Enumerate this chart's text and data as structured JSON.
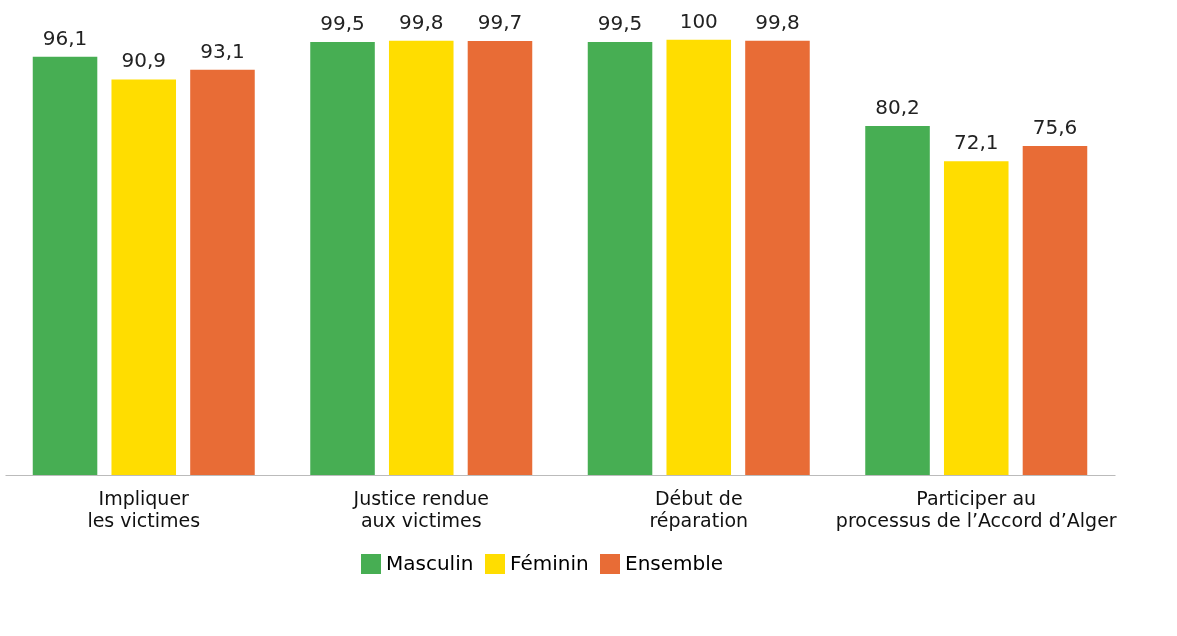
{
  "chart_data": {
    "type": "bar",
    "categories": [
      "Impliquer\nles victimes",
      "Justice rendue\naux victimes",
      "Début de\nréparation",
      "Participer au\nprocessus de l’Accord d’Alger"
    ],
    "series": [
      {
        "name": "Masculin",
        "color": "#47ae53",
        "values": [
          96.1,
          99.5,
          99.5,
          80.2
        ],
        "value_labels": [
          "96,1",
          "99,5",
          "99,5",
          "80,2"
        ]
      },
      {
        "name": "Féminin",
        "color": "#ffdd00",
        "values": [
          90.9,
          99.8,
          100,
          72.1
        ],
        "value_labels": [
          "90,9",
          "99,8",
          "100",
          "72,1"
        ]
      },
      {
        "name": "Ensemble",
        "color": "#e86c36",
        "values": [
          93.1,
          99.7,
          99.8,
          75.6
        ],
        "value_labels": [
          "93,1",
          "99,7",
          "99,8",
          "75,6"
        ]
      }
    ],
    "legend": "bottom",
    "grid": false
  }
}
